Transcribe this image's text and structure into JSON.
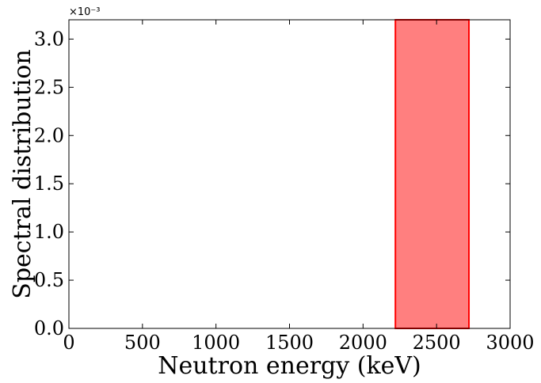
{
  "chart_data": {
    "type": "area",
    "xlabel": "Neutron energy (keV)",
    "ylabel": "Spectral distribution",
    "xlim": [
      0,
      3000
    ],
    "ylim": [
      0,
      0.0032
    ],
    "x_ticks": [
      0,
      500,
      1000,
      1500,
      2000,
      2500,
      3000
    ],
    "x_tick_labels": [
      "0",
      "500",
      "1000",
      "1500",
      "2000",
      "2500",
      "3000"
    ],
    "y_ticks": [
      0,
      0.0005,
      0.001,
      0.0015,
      0.002,
      0.0025,
      0.003
    ],
    "y_tick_labels": [
      "0.0",
      "0.5",
      "1.0",
      "1.5",
      "2.0",
      "2.5",
      "3.0"
    ],
    "y_offset_label": "×10⁻³",
    "grid": false,
    "series": [
      {
        "x": [
          2220,
          2220,
          2720,
          2720
        ],
        "y": [
          0,
          0.0032,
          0.0032,
          0
        ]
      }
    ],
    "fill_color": "#ff7f7f",
    "edge_color": "#ff0000"
  }
}
